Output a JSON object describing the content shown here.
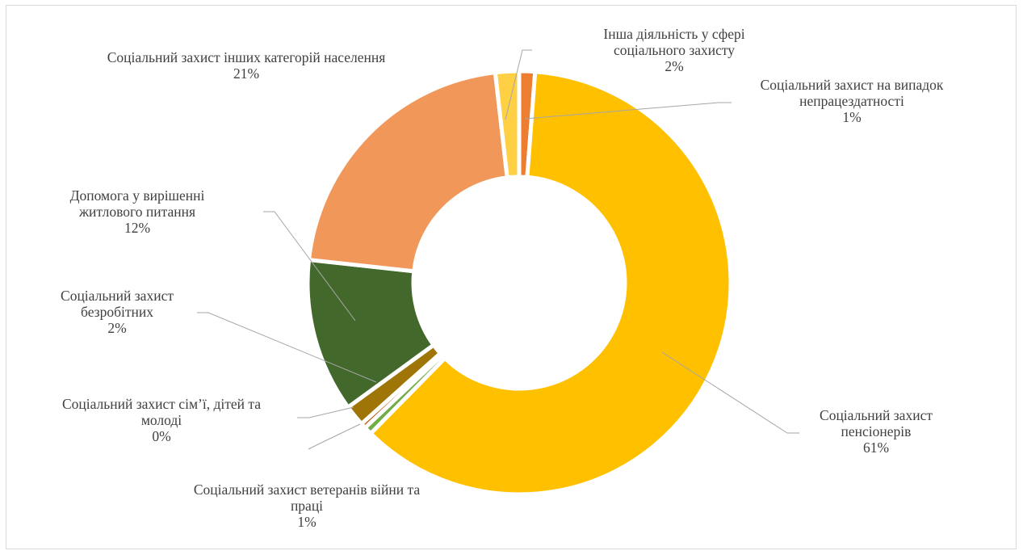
{
  "chart_data": {
    "type": "pie",
    "variant": "doughnut",
    "title": "",
    "series": [
      {
        "category": "Соціальний захист на випадок непрацездатності",
        "percent_label": "1%",
        "value": 1.2,
        "color": "#ED7D31"
      },
      {
        "category": "Соціальний захист пенсіонерів",
        "percent_label": "61%",
        "value": 61.0,
        "color": "#FFC000"
      },
      {
        "category": "Соціальний захист ветеранів війни та праці",
        "percent_label": "1%",
        "value": 0.6,
        "color": "#70AD47"
      },
      {
        "category": "Соціальний захист сім’ї, дітей та молоді",
        "percent_label": "0%",
        "value": 0.4,
        "color": "#C55A11"
      },
      {
        "category": "Соціальний захист безробітних",
        "percent_label": "2%",
        "value": 1.6,
        "color": "#9E7506"
      },
      {
        "category": "Допомога у вирішенні житлового питання",
        "percent_label": "12%",
        "value": 11.7,
        "color": "#43682B"
      },
      {
        "category": "Соціальний захист інших категорій населення",
        "percent_label": "21%",
        "value": 21.4,
        "color": "#F1975A"
      },
      {
        "category": "Інша діяльність у сфері соціального захисту",
        "percent_label": "2%",
        "value": 1.8,
        "color": "#FFD044"
      }
    ],
    "legend": "none",
    "data_labels": "outside with leader lines"
  },
  "labels": {
    "unemployment_l1": "Соціальний захист на випадок",
    "unemployment_l2": "непрацездатності",
    "unemployment_pct": "1%",
    "pensioners_l1": "Соціальний захист",
    "pensioners_l2": "пенсіонерів",
    "pensioners_pct": "61%",
    "veterans_l1": "Соціальний захист ветеранів війни та",
    "veterans_l2": "праці",
    "veterans_pct": "1%",
    "family_l1": "Соціальний захист сім’ї, дітей та",
    "family_l2": "молоді",
    "family_pct": "0%",
    "jobless_l1": "Соціальний захист",
    "jobless_l2": "безробітних",
    "jobless_pct": "2%",
    "housing_l1": "Допомога у вирішенні",
    "housing_l2": "житлового питання",
    "housing_pct": "12%",
    "other_cat_l1": "Соціальний захист інших категорій населення",
    "other_cat_pct": "21%",
    "other_act_l1": "Інша діяльність у сфері",
    "other_act_l2": "соціального захисту",
    "other_act_pct": "2%"
  }
}
